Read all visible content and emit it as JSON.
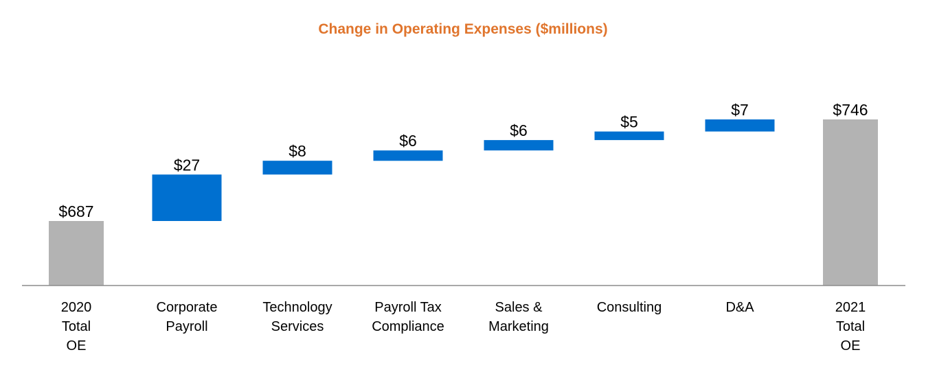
{
  "chart_data": {
    "type": "bar",
    "subtype": "waterfall",
    "title": "Change in Operating Expenses ($millions)",
    "xlabel": "",
    "ylabel": "",
    "unit_prefix": "$",
    "categories": [
      [
        "2020",
        "Total",
        "OE"
      ],
      [
        "Corporate",
        "Payroll"
      ],
      [
        "Technology",
        "Services"
      ],
      [
        "Payroll Tax",
        "Compliance"
      ],
      [
        "Sales &",
        "Marketing"
      ],
      [
        "Consulting"
      ],
      [
        "D&A"
      ],
      [
        "2021",
        "Total",
        "OE"
      ]
    ],
    "steps": [
      {
        "kind": "total",
        "value": 687,
        "label": "$687"
      },
      {
        "kind": "delta",
        "value": 27,
        "label": "$27"
      },
      {
        "kind": "delta",
        "value": 8,
        "label": "$8"
      },
      {
        "kind": "delta",
        "value": 6,
        "label": "$6"
      },
      {
        "kind": "delta",
        "value": 6,
        "label": "$6"
      },
      {
        "kind": "delta",
        "value": 5,
        "label": "$5"
      },
      {
        "kind": "delta",
        "value": 7,
        "label": "$7"
      },
      {
        "kind": "total",
        "value": 746,
        "label": "$746"
      }
    ],
    "colors": {
      "title": "#E0752D",
      "total": "#B3B3B3",
      "increase": "#0070D0",
      "axis": "#8C8C8C"
    },
    "grid": false,
    "legend": "none"
  }
}
